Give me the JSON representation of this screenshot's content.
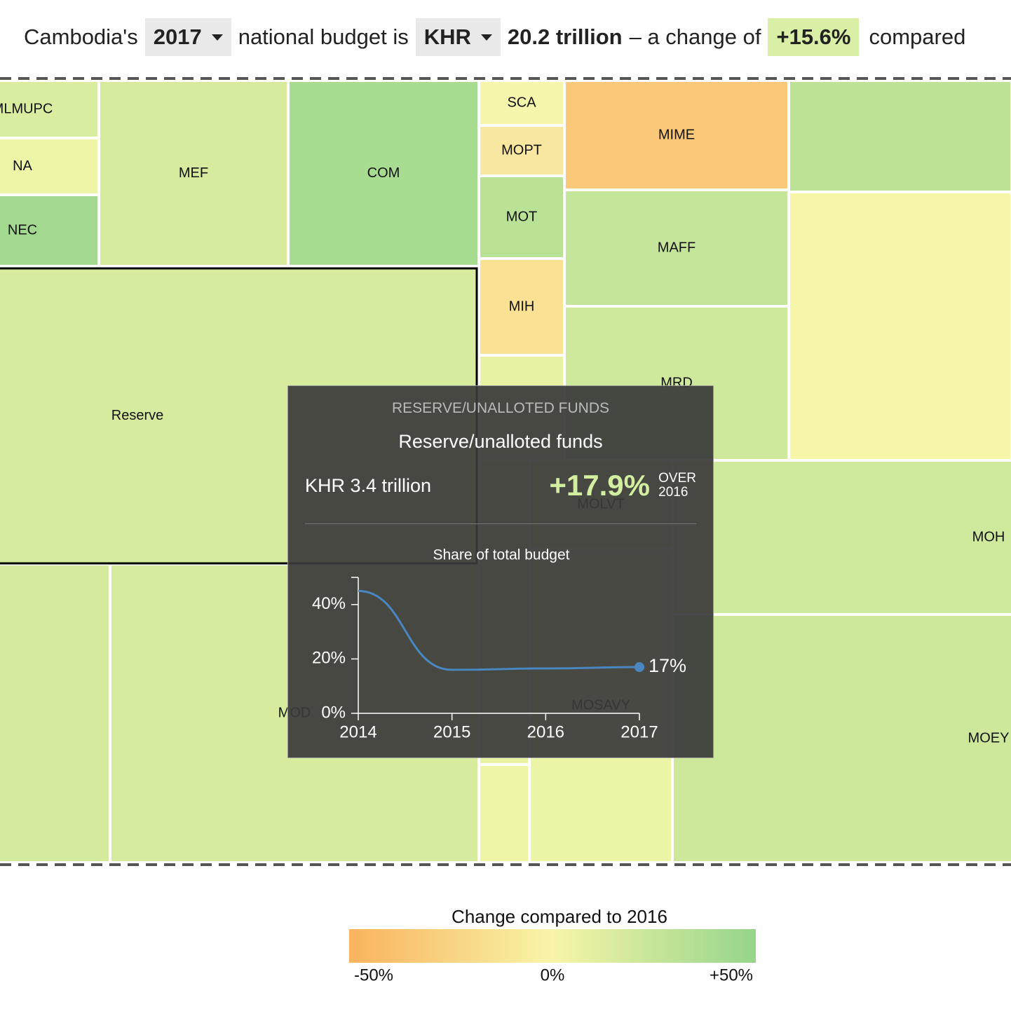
{
  "header": {
    "lead": "Cambodia's",
    "year": "2017",
    "middle": "national budget is",
    "currency": "KHR",
    "amount": "20.2 trillion",
    "change_text": "– a change of",
    "change": "+15.6%",
    "tail": "compared"
  },
  "treemap": {
    "cells": [
      {
        "label": "MLMUPC",
        "color": "#d9eda0"
      },
      {
        "label": "NA",
        "color": "#eef5a6"
      },
      {
        "label": "NEC",
        "color": "#a2d98f"
      },
      {
        "label": "MEF",
        "color": "#d6eb9d"
      },
      {
        "label": "COM",
        "color": "#a8dc90"
      },
      {
        "label": "SCA",
        "color": "#f4f6ac"
      },
      {
        "label": "MOPT",
        "color": "#f8e7a0"
      },
      {
        "label": "MOT",
        "color": "#b9e297"
      },
      {
        "label": "MIH",
        "color": "#fbe194"
      },
      {
        "label": "MIME",
        "color": "#fbc778"
      },
      {
        "label": "MAFF",
        "color": "#c5e69a"
      },
      {
        "label": "MRD",
        "color": "#cfe99c"
      },
      {
        "label": null,
        "color": "#bde496"
      },
      {
        "label": null,
        "color": "#f6f5a8"
      },
      {
        "label": "Reserve",
        "color": "#d6eb9d"
      },
      {
        "label": null,
        "color": "#e8f2a2"
      },
      {
        "label": null,
        "color": "#e8f2a2"
      },
      {
        "label": null,
        "color": "#eef5a6"
      },
      {
        "label": "MOLVT",
        "color": "#dcee9f"
      },
      {
        "label": "MOSAVY",
        "color": "#ecf4a6"
      },
      {
        "label": "MOH",
        "color": "#d0ea9d"
      },
      {
        "label": "MOEY",
        "color": "#cde89b"
      },
      {
        "label": "MOD",
        "color": "#d6eb9d"
      },
      {
        "label": null,
        "color": "#d4ea9c"
      }
    ]
  },
  "tooltip": {
    "category": "RESERVE/UNALLOTED FUNDS",
    "name": "Reserve/unalloted funds",
    "amount": "KHR 3.4 trillion",
    "change": "+17.9%",
    "over": "OVER",
    "over_year": "2016"
  },
  "chart_data": {
    "type": "line",
    "title": "Share of total budget",
    "x": [
      2014,
      2015,
      2016,
      2017
    ],
    "values": [
      45,
      16,
      16.5,
      17
    ],
    "value_labels": [
      null,
      null,
      null,
      "17%"
    ],
    "color": "#4a86c0",
    "xlim": [
      2014,
      2017
    ],
    "xticks": [
      2014,
      2015,
      2016,
      2017
    ],
    "ylim": [
      0,
      50
    ],
    "yticks": [
      {
        "value": 0,
        "label": "0%"
      },
      {
        "value": 20,
        "label": "20%"
      },
      {
        "value": 40,
        "label": "40%"
      }
    ]
  },
  "legend": {
    "title": "Change compared to 2016",
    "colors": [
      "#f9b35e",
      "#f8f5a8",
      "#95d58b"
    ],
    "labels": [
      "-50%",
      "0%",
      "+50%"
    ]
  }
}
